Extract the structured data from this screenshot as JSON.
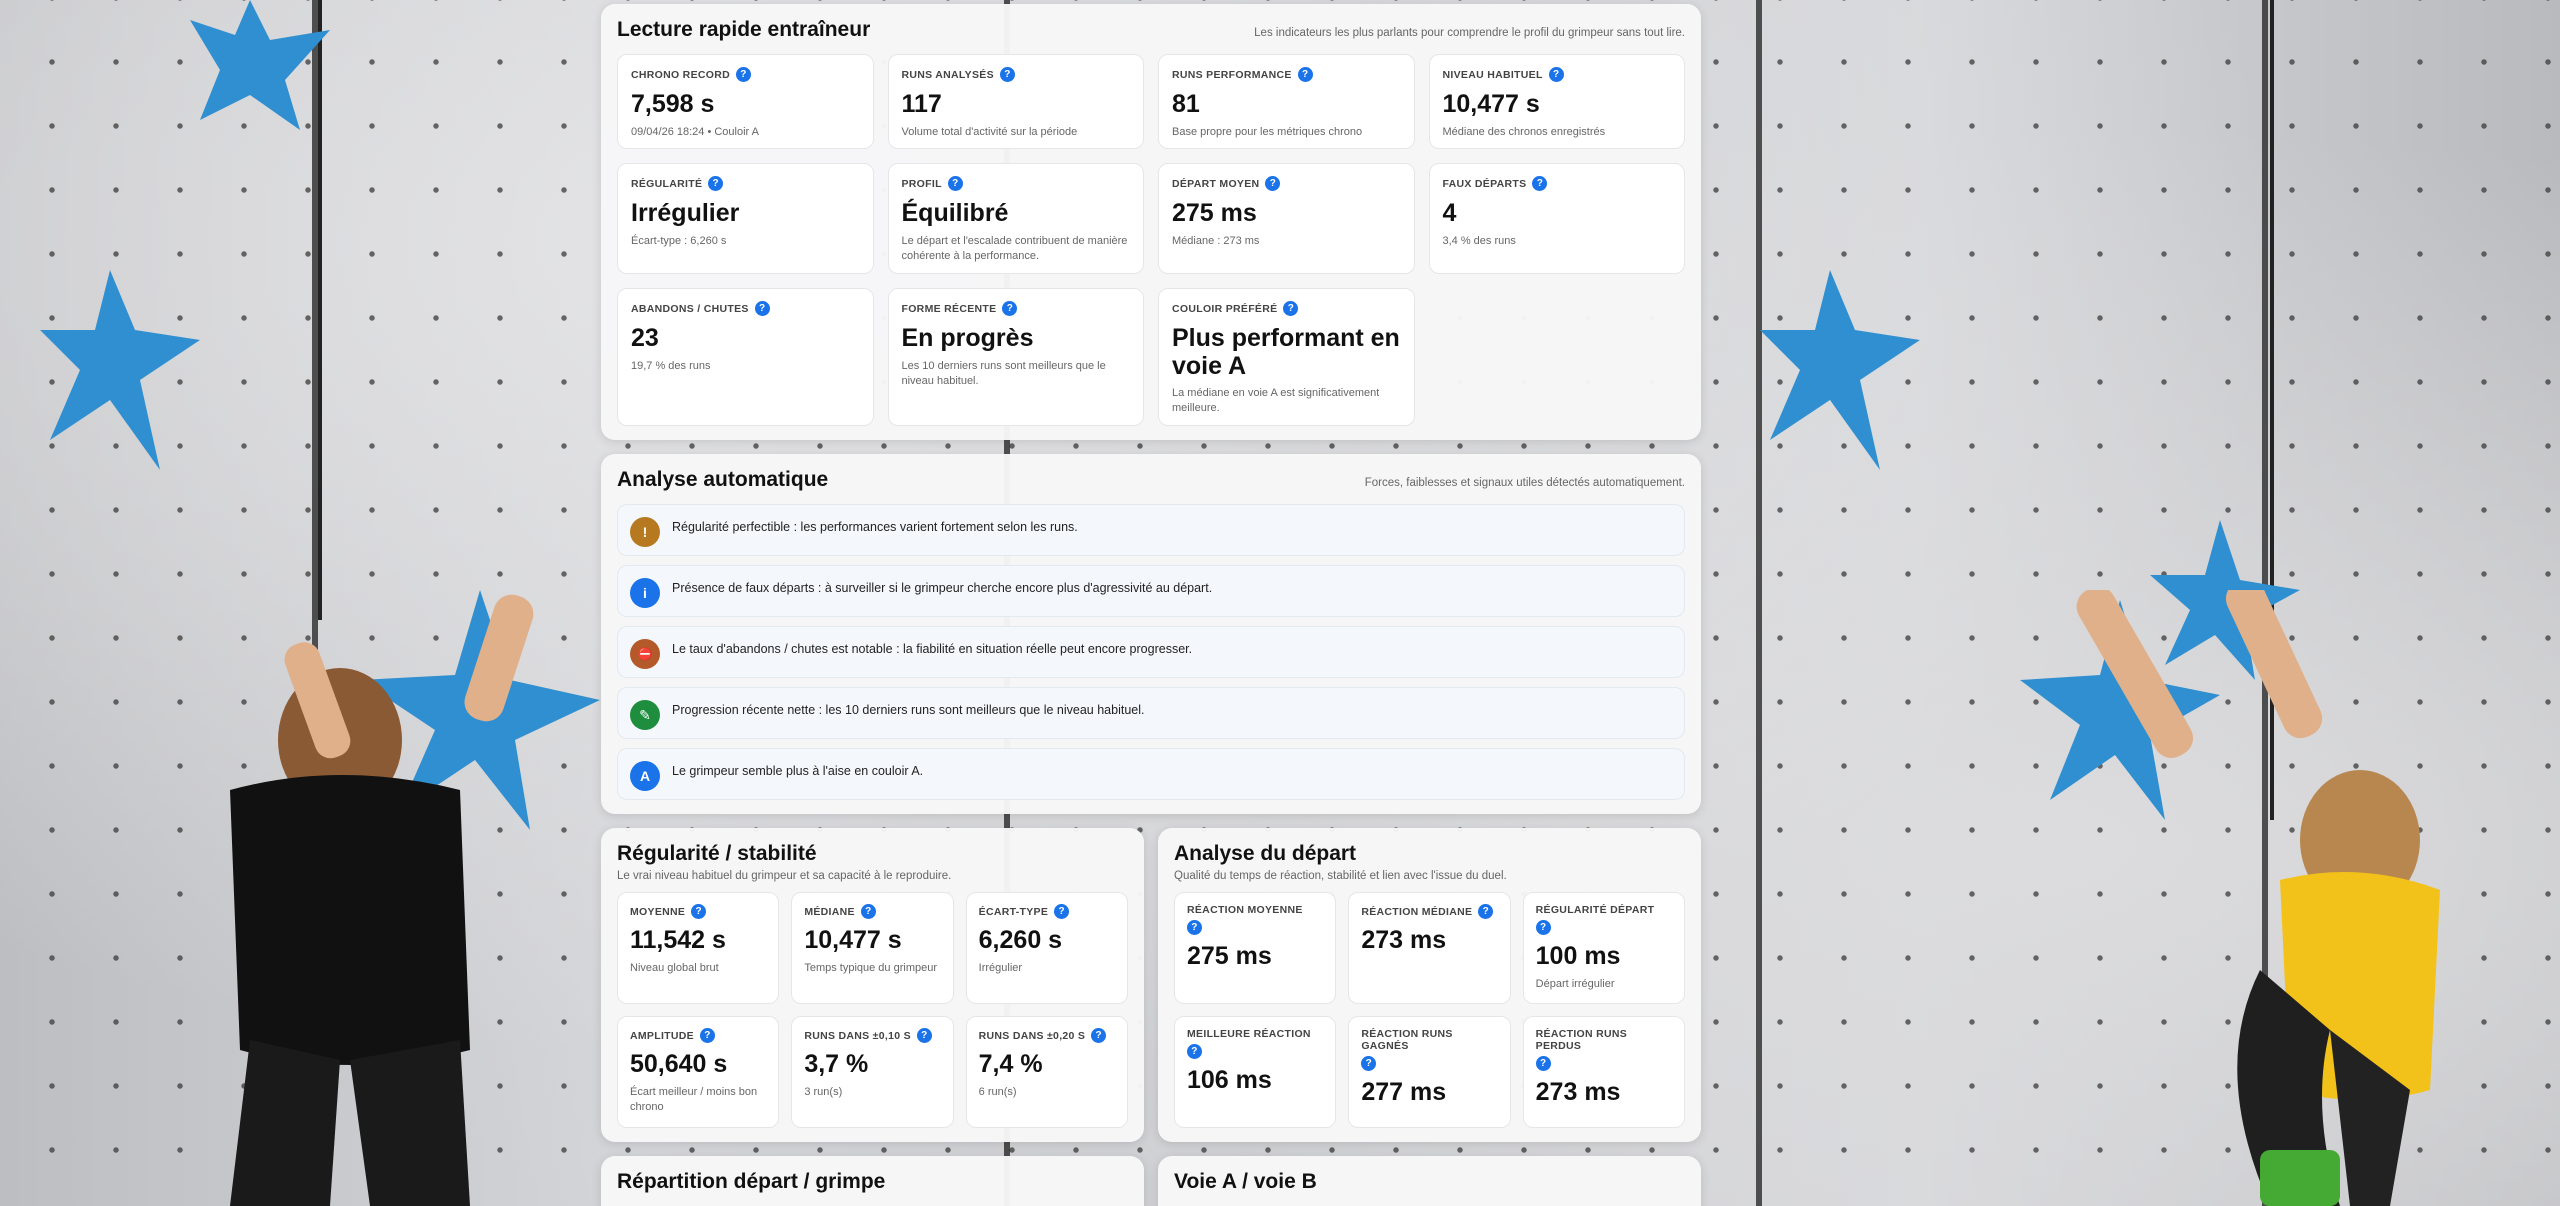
{
  "quick": {
    "title": "Lecture rapide entraîneur",
    "subtitle": "Les indicateurs les plus parlants pour comprendre le profil du grimpeur sans tout lire.",
    "cards": [
      {
        "label": "CHRONO RECORD",
        "value": "7,598 s",
        "note": "09/04/26 18:24 • Couloir A"
      },
      {
        "label": "RUNS ANALYSÉS",
        "value": "117",
        "note": "Volume total d'activité sur la période"
      },
      {
        "label": "RUNS PERFORMANCE",
        "value": "81",
        "note": "Base propre pour les métriques chrono"
      },
      {
        "label": "NIVEAU HABITUEL",
        "value": "10,477 s",
        "note": "Médiane des chronos enregistrés"
      },
      {
        "label": "RÉGULARITÉ",
        "value": "Irrégulier",
        "note": "Écart-type : 6,260 s"
      },
      {
        "label": "PROFIL",
        "value": "Équilibré",
        "note": "Le départ et l'escalade contribuent de manière cohérente à la performance."
      },
      {
        "label": "DÉPART MOYEN",
        "value": "275 ms",
        "note": "Médiane : 273 ms"
      },
      {
        "label": "FAUX DÉPARTS",
        "value": "4",
        "note": "3,4 % des runs"
      },
      {
        "label": "ABANDONS / CHUTES",
        "value": "23",
        "note": "19,7 % des runs"
      },
      {
        "label": "FORME RÉCENTE",
        "value": "En progrès",
        "note": "Les 10 derniers runs sont meilleurs que le niveau habituel."
      },
      {
        "label": "COULOIR PRÉFÉRÉ",
        "value": "Plus performant en voie A",
        "note": "La médiane en voie A est significativement meilleure."
      }
    ]
  },
  "analysis": {
    "title": "Analyse automatique",
    "subtitle": "Forces, faiblesses et signaux utiles détectés automatiquement.",
    "items": [
      {
        "icon": "!",
        "icon_name": "warning-icon",
        "color": "#b7791f",
        "text": "Régularité perfectible : les performances varient fortement selon les runs."
      },
      {
        "icon": "i",
        "icon_name": "info-icon",
        "color": "#1a73e8",
        "text": "Présence de faux départs : à surveiller si le grimpeur cherche encore plus d'agressivité au départ."
      },
      {
        "icon": "⛔",
        "icon_name": "stop-icon",
        "color": "#b45a2a",
        "text": "Le taux d'abandons / chutes est notable : la fiabilité en situation réelle peut encore progresser."
      },
      {
        "icon": "✎",
        "icon_name": "progress-icon",
        "color": "#1e8e3e",
        "text": "Progression récente nette : les 10 derniers runs sont meilleurs que le niveau habituel."
      },
      {
        "icon": "A",
        "icon_name": "lane-a-icon",
        "color": "#1a73e8",
        "text": "Le grimpeur semble plus à l'aise en couloir A."
      }
    ]
  },
  "regularity": {
    "title": "Régularité / stabilité",
    "desc": "Le vrai niveau habituel du grimpeur et sa capacité à le reproduire.",
    "cards": [
      {
        "label": "MOYENNE",
        "value": "11,542 s",
        "note": "Niveau global brut"
      },
      {
        "label": "MÉDIANE",
        "value": "10,477 s",
        "note": "Temps typique du grimpeur"
      },
      {
        "label": "ÉCART-TYPE",
        "value": "6,260 s",
        "note": "Irrégulier"
      },
      {
        "label": "AMPLITUDE",
        "value": "50,640 s",
        "note": "Écart meilleur / moins bon chrono"
      },
      {
        "label": "RUNS DANS ±0,10 S",
        "value": "3,7 %",
        "note": "3 run(s)"
      },
      {
        "label": "RUNS DANS ±0,20 S",
        "value": "7,4 %",
        "note": "6 run(s)"
      }
    ]
  },
  "start": {
    "title": "Analyse du départ",
    "desc": "Qualité du temps de réaction, stabilité et lien avec l'issue du duel.",
    "cards": [
      {
        "label": "RÉACTION MOYENNE",
        "value": "275 ms",
        "note": ""
      },
      {
        "label": "RÉACTION MÉDIANE",
        "value": "273 ms",
        "note": ""
      },
      {
        "label": "RÉGULARITÉ DÉPART",
        "value": "100 ms",
        "note": "Départ irrégulier"
      },
      {
        "label": "MEILLEURE RÉACTION",
        "value": "106 ms",
        "note": ""
      },
      {
        "label": "RÉACTION RUNS GAGNÉS",
        "value": "277 ms",
        "note": ""
      },
      {
        "label": "RÉACTION RUNS PERDUS",
        "value": "273 ms",
        "note": ""
      }
    ]
  },
  "split": {
    "title": "Répartition départ / grimpe"
  },
  "lanes": {
    "title": "Voie A / voie B"
  },
  "help_icon": "?"
}
